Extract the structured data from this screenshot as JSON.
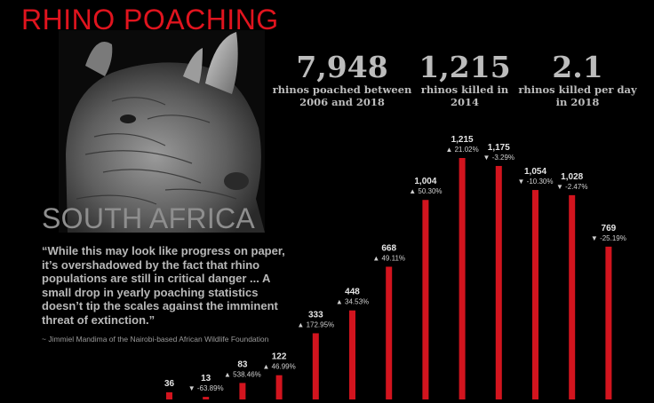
{
  "header": {
    "title": "RHINO POACHING",
    "subtitle": "SOUTH AFRICA"
  },
  "stats": [
    {
      "value": "7,948",
      "caption_1": "rhinos poached between",
      "caption_2": "2006 and 2018"
    },
    {
      "value": "1,215",
      "caption_1": "rhinos killed in",
      "caption_2": "2014"
    },
    {
      "value": "2.1",
      "caption_1": "rhinos killed per day",
      "caption_2": "in 2018"
    }
  ],
  "quote": {
    "text": "“While this may look like progress on paper, it’s overshadowed by the fact that rhino populations are still in critical danger ... A small drop in yearly poaching statistics doesn’t tip the scales against the imminent threat of extinction.”",
    "attribution": "~ Jimmiel Mandima of the Nairobi-based African Wildlife Foundation"
  },
  "image": {
    "icon": "rhino-photo"
  },
  "colors": {
    "accent": "#e0141e",
    "bar": "#d2141e",
    "background": "#000000"
  },
  "chart_data": {
    "type": "bar",
    "values": [
      36,
      13,
      83,
      122,
      333,
      448,
      668,
      1004,
      1215,
      1175,
      1054,
      1028,
      769
    ],
    "value_labels": [
      "36",
      "13",
      "83",
      "122",
      "333",
      "448",
      "668",
      "1,004",
      "1,215",
      "1,175",
      "1,054",
      "1,028",
      "769"
    ],
    "change_labels": [
      "",
      "▼ -63.89%",
      "▲ 538.46%",
      "▲ 46.99%",
      "▲ 172.95%",
      "▲ 34.53%",
      "▲ 49.11%",
      "▲ 50.30%",
      "▲ 21.02%",
      "▼ -3.29%",
      "▼ -10.30%",
      "▼ -2.47%",
      "▼ -25.19%"
    ],
    "ylim": [
      0,
      1215
    ],
    "grid": false,
    "axes_visible": false
  }
}
